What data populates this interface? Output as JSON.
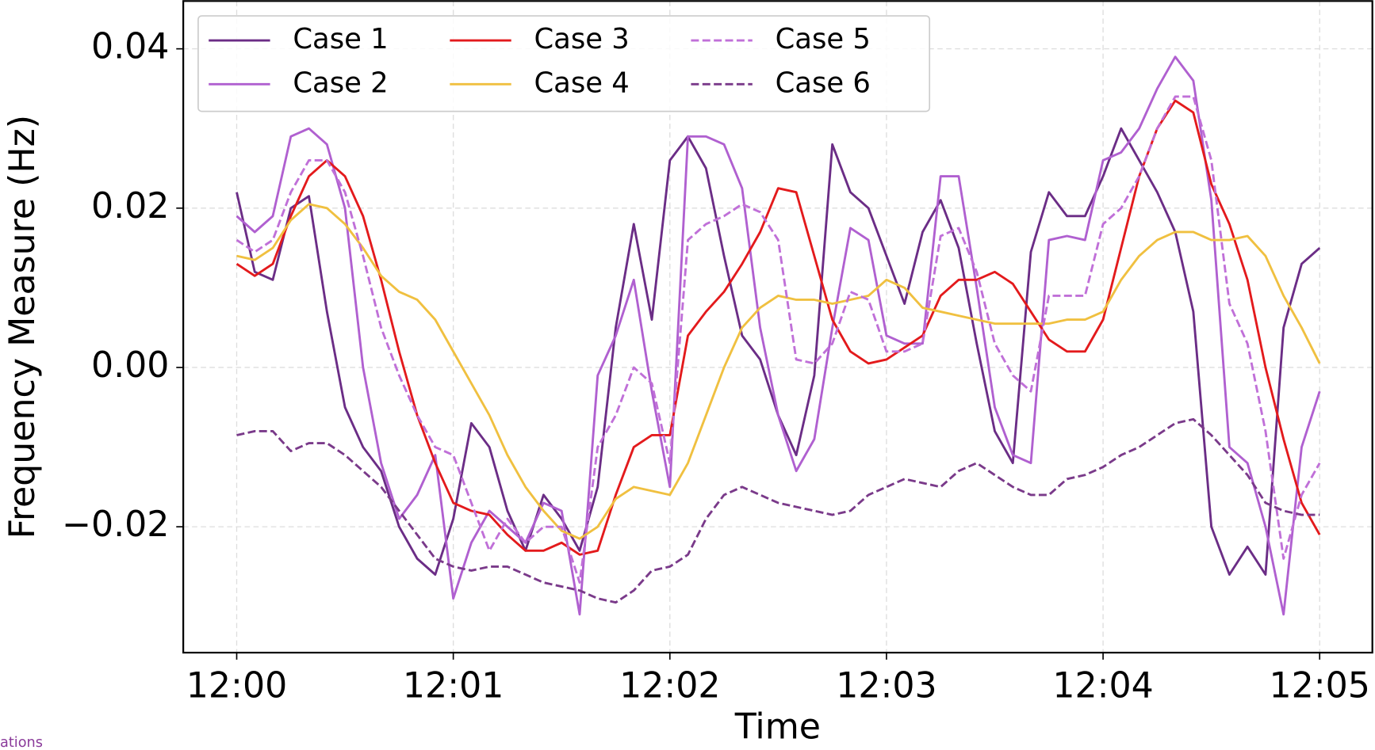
{
  "chart_data": {
    "type": "line",
    "xlabel": "Time",
    "ylabel": "Frequency Measure (Hz)",
    "x": [
      0,
      5,
      10,
      15,
      20,
      25,
      30,
      35,
      40,
      45,
      50,
      55,
      60,
      65,
      70,
      75,
      80,
      85,
      90,
      95,
      100,
      105,
      110,
      115,
      120,
      125,
      130,
      135,
      140,
      145,
      150,
      155,
      160,
      165,
      170,
      175,
      180,
      185,
      190,
      195,
      200,
      205,
      210,
      215,
      220,
      225,
      230,
      235,
      240,
      245,
      250,
      255,
      260,
      265,
      270,
      275,
      280,
      285,
      290,
      295,
      300
    ],
    "xlim": [
      -14.8,
      314.6
    ],
    "xticks": [
      {
        "value": 0,
        "label": "12:00"
      },
      {
        "value": 60,
        "label": "12:01"
      },
      {
        "value": 120,
        "label": "12:02"
      },
      {
        "value": 180,
        "label": "12:03"
      },
      {
        "value": 240,
        "label": "12:04"
      },
      {
        "value": 300,
        "label": "12:05"
      }
    ],
    "ylim": [
      -0.0358,
      0.046
    ],
    "yticks": [
      {
        "value": -0.02,
        "label": "−0.02"
      },
      {
        "value": 0,
        "label": "0.00"
      },
      {
        "value": 0.02,
        "label": "0.02"
      },
      {
        "value": 0.04,
        "label": "0.04"
      }
    ],
    "grid": true,
    "legend": "upper left",
    "series": [
      {
        "name": "Case 1",
        "color": "#6b2d86",
        "dashed": false,
        "values": [
          0.022,
          0.012,
          0.011,
          0.02,
          0.0215,
          0.007,
          -0.005,
          -0.01,
          -0.013,
          -0.02,
          -0.024,
          -0.026,
          -0.019,
          -0.007,
          -0.01,
          -0.018,
          -0.023,
          -0.016,
          -0.019,
          -0.023,
          -0.015,
          0.005,
          0.018,
          0.006,
          0.026,
          0.029,
          0.025,
          0.014,
          0.004,
          0.001,
          -0.006,
          -0.011,
          -0.001,
          0.028,
          0.022,
          0.02,
          0.014,
          0.008,
          0.017,
          0.021,
          0.015,
          0.003,
          -0.008,
          -0.012,
          0.0145,
          0.022,
          0.019,
          0.019,
          0.024,
          0.03,
          0.026,
          0.022,
          0.017,
          0.007,
          -0.02,
          -0.026,
          -0.0225,
          -0.026,
          0.005,
          0.013,
          0.015
        ]
      },
      {
        "name": "Case 2",
        "color": "#b060d0",
        "dashed": false,
        "values": [
          0.019,
          0.017,
          0.019,
          0.029,
          0.03,
          0.028,
          0.02,
          0.0,
          -0.012,
          -0.019,
          -0.016,
          -0.011,
          -0.029,
          -0.022,
          -0.018,
          -0.02,
          -0.022,
          -0.017,
          -0.018,
          -0.031,
          -0.001,
          0.004,
          0.011,
          -0.003,
          -0.015,
          0.029,
          0.029,
          0.028,
          0.0225,
          0.005,
          -0.006,
          -0.013,
          -0.009,
          0.005,
          0.0175,
          0.016,
          0.004,
          0.003,
          0.003,
          0.024,
          0.024,
          0.01,
          -0.005,
          -0.011,
          -0.012,
          0.016,
          0.0165,
          0.016,
          0.026,
          0.027,
          0.03,
          0.035,
          0.039,
          0.036,
          0.021,
          -0.01,
          -0.012,
          -0.02,
          -0.031,
          -0.01,
          -0.003
        ]
      },
      {
        "name": "Case 3",
        "color": "#e31a1c",
        "dashed": false,
        "values": [
          0.013,
          0.0115,
          0.013,
          0.019,
          0.024,
          0.026,
          0.024,
          0.019,
          0.011,
          0.002,
          -0.006,
          -0.012,
          -0.017,
          -0.018,
          -0.0185,
          -0.021,
          -0.023,
          -0.023,
          -0.022,
          -0.0235,
          -0.023,
          -0.016,
          -0.01,
          -0.0085,
          -0.0085,
          0.004,
          0.007,
          0.0095,
          0.013,
          0.017,
          0.0225,
          0.022,
          0.014,
          0.006,
          0.002,
          0.0005,
          0.001,
          0.0025,
          0.004,
          0.009,
          0.011,
          0.011,
          0.012,
          0.0105,
          0.007,
          0.0035,
          0.002,
          0.002,
          0.006,
          0.015,
          0.024,
          0.03,
          0.0335,
          0.032,
          0.023,
          0.018,
          0.011,
          0.0,
          -0.009,
          -0.017,
          -0.021
        ]
      },
      {
        "name": "Case 4",
        "color": "#f0c040",
        "dashed": false,
        "values": [
          0.014,
          0.0135,
          0.015,
          0.0185,
          0.0205,
          0.02,
          0.018,
          0.015,
          0.0115,
          0.0095,
          0.0085,
          0.006,
          0.002,
          -0.002,
          -0.006,
          -0.011,
          -0.015,
          -0.018,
          -0.0205,
          -0.0215,
          -0.02,
          -0.0165,
          -0.015,
          -0.0155,
          -0.016,
          -0.012,
          -0.006,
          0.0,
          0.005,
          0.0075,
          0.009,
          0.0085,
          0.0085,
          0.008,
          0.0085,
          0.009,
          0.011,
          0.01,
          0.0075,
          0.007,
          0.0065,
          0.006,
          0.0055,
          0.0055,
          0.0055,
          0.0055,
          0.006,
          0.006,
          0.007,
          0.011,
          0.014,
          0.016,
          0.017,
          0.017,
          0.016,
          0.016,
          0.0165,
          0.014,
          0.009,
          0.005,
          0.0005
        ]
      },
      {
        "name": "Case 5",
        "color": "#c070d8",
        "dashed": true,
        "values": [
          0.016,
          0.0145,
          0.016,
          0.022,
          0.026,
          0.026,
          0.022,
          0.014,
          0.005,
          -0.001,
          -0.006,
          -0.01,
          -0.011,
          -0.017,
          -0.023,
          -0.019,
          -0.022,
          -0.02,
          -0.02,
          -0.027,
          -0.01,
          -0.006,
          0.0,
          -0.002,
          -0.012,
          0.016,
          0.018,
          0.019,
          0.0205,
          0.0195,
          0.016,
          0.001,
          0.0005,
          0.003,
          0.0095,
          0.0085,
          0.002,
          0.002,
          0.003,
          0.0165,
          0.0175,
          0.012,
          0.003,
          -0.001,
          -0.003,
          0.009,
          0.009,
          0.009,
          0.018,
          0.02,
          0.024,
          0.03,
          0.034,
          0.034,
          0.026,
          0.008,
          0.003,
          -0.008,
          -0.024,
          -0.016,
          -0.012
        ]
      },
      {
        "name": "Case 6",
        "color": "#7a3a8a",
        "dashed": true,
        "values": [
          -0.0085,
          -0.008,
          -0.008,
          -0.0105,
          -0.0095,
          -0.0095,
          -0.011,
          -0.013,
          -0.015,
          -0.018,
          -0.021,
          -0.024,
          -0.025,
          -0.0255,
          -0.025,
          -0.025,
          -0.026,
          -0.027,
          -0.0275,
          -0.028,
          -0.029,
          -0.0295,
          -0.028,
          -0.0255,
          -0.025,
          -0.0235,
          -0.019,
          -0.016,
          -0.015,
          -0.016,
          -0.017,
          -0.0175,
          -0.018,
          -0.0185,
          -0.018,
          -0.016,
          -0.015,
          -0.014,
          -0.0145,
          -0.015,
          -0.013,
          -0.012,
          -0.0135,
          -0.015,
          -0.016,
          -0.016,
          -0.014,
          -0.0135,
          -0.0125,
          -0.011,
          -0.01,
          -0.0085,
          -0.007,
          -0.0065,
          -0.0085,
          -0.011,
          -0.0135,
          -0.017,
          -0.018,
          -0.0185,
          -0.0185
        ]
      }
    ]
  },
  "footer_text": "ations"
}
